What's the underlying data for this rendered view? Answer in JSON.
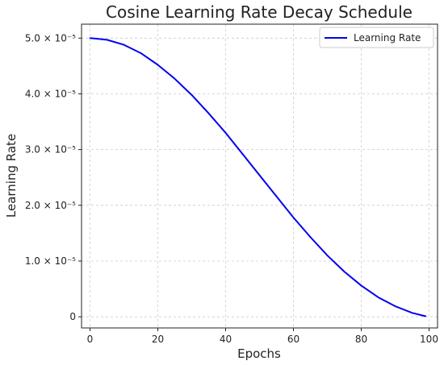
{
  "chart_data": {
    "type": "line",
    "title": "Cosine Learning Rate Decay Schedule",
    "xlabel": "Epochs",
    "ylabel": "Learning Rate",
    "xlim": [
      -2.5,
      102.5
    ],
    "ylim": [
      -2e-06,
      5.25e-05
    ],
    "xticks": [
      {
        "value": 0,
        "label": "0"
      },
      {
        "value": 20,
        "label": "20"
      },
      {
        "value": 40,
        "label": "40"
      },
      {
        "value": 60,
        "label": "60"
      },
      {
        "value": 80,
        "label": "80"
      },
      {
        "value": 100,
        "label": "100"
      }
    ],
    "yticks": [
      {
        "value": 0,
        "label": "0"
      },
      {
        "value": 1e-05,
        "label": "1.0 × 10⁻⁵"
      },
      {
        "value": 2e-05,
        "label": "2.0 × 10⁻⁵"
      },
      {
        "value": 3e-05,
        "label": "3.0 × 10⁻⁵"
      },
      {
        "value": 4e-05,
        "label": "4.0 × 10⁻⁵"
      },
      {
        "value": 5e-05,
        "label": "5.0 × 10⁻⁵"
      }
    ],
    "grid": true,
    "legend_position": "top-right",
    "series": [
      {
        "name": "Learning Rate",
        "color": "#0000ee",
        "x": [
          0,
          5,
          10,
          15,
          20,
          25,
          30,
          35,
          40,
          45,
          50,
          55,
          60,
          65,
          70,
          75,
          80,
          85,
          90,
          95,
          99
        ],
        "y": [
          5e-05,
          4.97e-05,
          4.88e-05,
          4.73e-05,
          4.52e-05,
          4.27e-05,
          3.98e-05,
          3.65e-05,
          3.3e-05,
          2.92e-05,
          2.54e-05,
          2.16e-05,
          1.78e-05,
          1.43e-05,
          1.1e-05,
          8.1e-06,
          5.6e-06,
          3.5e-06,
          1.9e-06,
          7e-07,
          1e-07
        ]
      }
    ]
  }
}
